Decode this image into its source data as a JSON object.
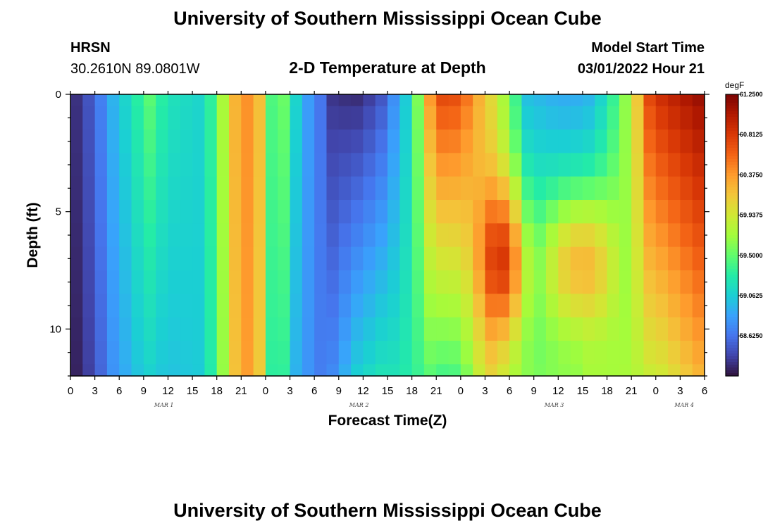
{
  "chart_data": {
    "type": "heatmap",
    "title": "University of Southern Mississippi Ocean Cube",
    "station": "HRSN",
    "coordinates": "30.2610N  89.0801W",
    "subtitle": "2-D Temperature at Depth",
    "model_start_label": "Model Start Time",
    "model_start_value": "03/01/2022 Hour 21",
    "xlabel": "Forecast Time(Z)",
    "ylabel": "Depth (ft)",
    "footer_title": "University of Southern Mississippi Ocean Cube",
    "x_tick_labels": [
      "0",
      "3",
      "6",
      "9",
      "12",
      "15",
      "18",
      "21",
      "0",
      "3",
      "6",
      "9",
      "12",
      "15",
      "18",
      "21",
      "0",
      "3",
      "6",
      "9",
      "12",
      "15",
      "18",
      "21",
      "0",
      "3",
      "6"
    ],
    "x_hours": [
      0,
      3,
      6,
      9,
      12,
      15,
      18,
      21,
      24,
      27,
      30,
      33,
      36,
      39,
      42,
      45,
      48,
      51,
      54,
      57,
      60,
      63,
      66,
      69,
      72,
      75,
      78
    ],
    "x_range": [
      0,
      78
    ],
    "date_labels": [
      {
        "text": "MAR 1",
        "hour": 11.5
      },
      {
        "text": "MAR 2",
        "hour": 35.5
      },
      {
        "text": "MAR 3",
        "hour": 59.5
      },
      {
        "text": "MAR 4",
        "hour": 75.5
      }
    ],
    "y_tick_labels": [
      "0",
      "5",
      "10"
    ],
    "y_ticks": [
      0,
      5,
      10
    ],
    "y_range": [
      0,
      12
    ],
    "colorbar": {
      "units": "degF",
      "min": 58.19,
      "max": 61.25,
      "tick_labels": [
        "61.2500",
        "60.8125",
        "60.3750",
        "59.9375",
        "59.5000",
        "59.0625",
        "58.6250"
      ],
      "tick_values": [
        61.25,
        60.8125,
        60.375,
        59.9375,
        59.5,
        59.0625,
        58.625
      ],
      "colors": [
        "#30123b",
        "#4145ab",
        "#4675ed",
        "#39a2fc",
        "#1bcfd4",
        "#24eca6",
        "#61fc6c",
        "#a4fc3b",
        "#d1e834",
        "#f3c63a",
        "#fe9b2d",
        "#f36315",
        "#d93806",
        "#b11901",
        "#7a0403"
      ]
    },
    "grid": {
      "hour_step": 1.5,
      "depth_levels": [
        0,
        1,
        2,
        3,
        4,
        5,
        6,
        7,
        8,
        9,
        10,
        11,
        12
      ],
      "anchor_hours": [
        0,
        3,
        5,
        8,
        9.5,
        12,
        16,
        18,
        19.5,
        21,
        23,
        24.5,
        26,
        27.5,
        29,
        31,
        32,
        35,
        38,
        40,
        42,
        44.5,
        46,
        48,
        50,
        52,
        54,
        56,
        58,
        60,
        62,
        64,
        66,
        69,
        71,
        73,
        75,
        78
      ],
      "surface_profile": [
        58.25,
        58.55,
        58.9,
        59.25,
        59.5,
        59.2,
        59.1,
        59.45,
        60.05,
        60.45,
        60.35,
        59.4,
        59.6,
        59.15,
        58.85,
        58.6,
        58.35,
        58.3,
        58.45,
        58.8,
        59.2,
        60.5,
        60.75,
        60.65,
        60.3,
        60.0,
        59.6,
        59.0,
        58.95,
        58.9,
        58.9,
        58.95,
        59.2,
        59.8,
        60.7,
        60.9,
        61.0,
        61.15
      ],
      "bottom_profile": [
        58.2,
        58.45,
        58.75,
        59.0,
        59.1,
        59.0,
        59.05,
        59.4,
        59.95,
        60.4,
        60.3,
        59.3,
        59.4,
        58.95,
        58.8,
        58.65,
        58.7,
        59.05,
        59.2,
        59.2,
        59.3,
        59.5,
        59.4,
        59.45,
        59.85,
        60.05,
        59.75,
        59.6,
        59.55,
        59.6,
        59.6,
        59.7,
        59.7,
        59.75,
        59.9,
        59.95,
        60.1,
        60.3
      ],
      "mid_peak_hour": 53.5,
      "mid_peak_width": 3.0,
      "mid_peak_depth": 7,
      "mid_peak_amp": 1.0,
      "late_band_hours": [
        57,
        68
      ],
      "late_band_depth": 7,
      "late_band_amp": 1.1
    }
  }
}
